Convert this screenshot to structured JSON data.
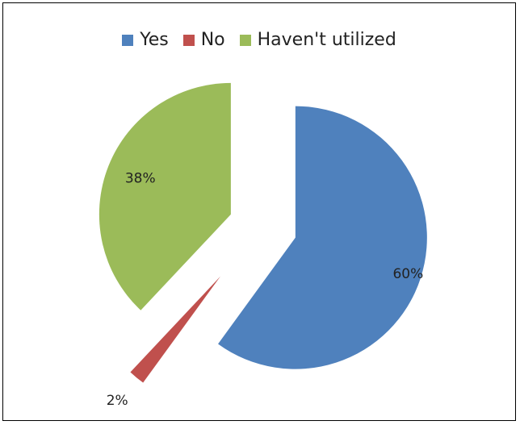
{
  "chart_data": {
    "type": "pie",
    "title": "",
    "legend_position": "top",
    "exploded": true,
    "slices": [
      {
        "label": "Yes",
        "value": 60,
        "display": "60%",
        "color": "#4F81BD"
      },
      {
        "label": "No",
        "value": 2,
        "display": "2%",
        "color": "#C0504D"
      },
      {
        "label": "Haven't utilized",
        "value": 38,
        "display": "38%",
        "color": "#9BBB59"
      }
    ]
  }
}
